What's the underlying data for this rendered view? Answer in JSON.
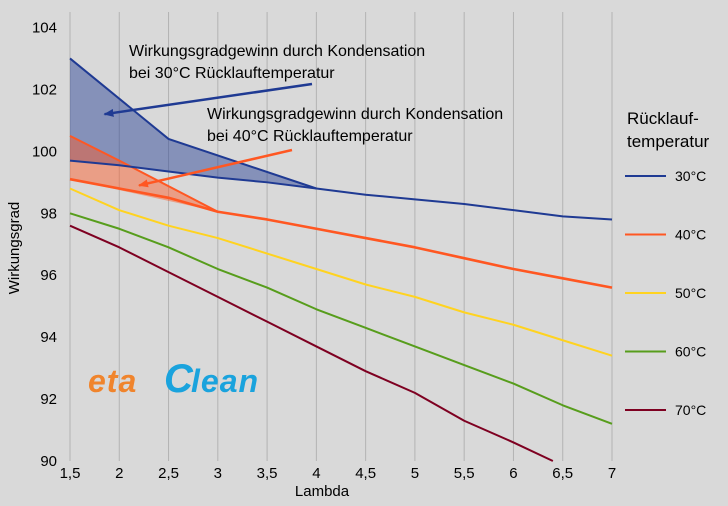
{
  "chart_data": {
    "type": "line",
    "xlabel": "Lambda",
    "ylabel": "Wirkungsgrad",
    "xlim": [
      1.5,
      7
    ],
    "ylim": [
      90,
      104.5
    ],
    "x_ticks": [
      "1,5",
      "2",
      "2,5",
      "3",
      "3,5",
      "4",
      "4,5",
      "5",
      "5,5",
      "6",
      "6,5",
      "7"
    ],
    "y_ticks": [
      "90",
      "92",
      "94",
      "96",
      "98",
      "100",
      "102",
      "104"
    ],
    "grid": "vertical",
    "legend": {
      "title": "Rücklauf-\ntemperatur",
      "placement": "right"
    },
    "series": [
      {
        "name": "30°C",
        "color": "#1f3a93",
        "x": [
          1.5,
          2,
          2.5,
          3,
          3.5,
          4,
          4.5,
          5,
          5.5,
          6,
          6.5,
          7
        ],
        "y": [
          99.7,
          99.55,
          99.35,
          99.15,
          99.0,
          98.8,
          98.6,
          98.45,
          98.3,
          98.1,
          97.9,
          97.8
        ]
      },
      {
        "name": "40°C",
        "color": "#ff5722",
        "x": [
          1.5,
          2,
          2.5,
          3,
          3.5,
          4,
          4.5,
          5,
          5.5,
          6,
          6.5,
          7
        ],
        "y": [
          99.1,
          98.8,
          98.5,
          98.05,
          97.8,
          97.5,
          97.2,
          96.9,
          96.55,
          96.2,
          95.9,
          95.6
        ]
      },
      {
        "name": "50°C",
        "color": "#ffd320",
        "x": [
          1.5,
          2,
          2.5,
          3,
          3.5,
          4,
          4.5,
          5,
          5.5,
          6,
          6.5,
          7
        ],
        "y": [
          98.8,
          98.1,
          97.6,
          97.2,
          96.7,
          96.2,
          95.7,
          95.3,
          94.8,
          94.4,
          93.9,
          93.4
        ]
      },
      {
        "name": "60°C",
        "color": "#579d1c",
        "x": [
          1.5,
          2,
          2.5,
          3,
          3.5,
          4,
          4.5,
          5,
          5.5,
          6,
          6.5,
          7
        ],
        "y": [
          98.0,
          97.5,
          96.9,
          96.2,
          95.6,
          94.9,
          94.3,
          93.7,
          93.1,
          92.5,
          91.8,
          91.2
        ]
      },
      {
        "name": "70°C",
        "color": "#7e0021",
        "x": [
          1.5,
          2,
          2.5,
          3,
          3.5,
          4,
          4.5,
          5,
          5.5,
          6,
          6.4
        ],
        "y": [
          97.6,
          96.9,
          96.1,
          95.3,
          94.5,
          93.7,
          92.9,
          92.2,
          91.3,
          90.6,
          90.0
        ]
      }
    ],
    "areas": [
      {
        "color": "#1f3a93",
        "upper": {
          "x": [
            1.5,
            2.5,
            4
          ],
          "y": [
            103.0,
            100.4,
            98.8
          ]
        },
        "lower": {
          "x": [
            1.5,
            2.5,
            4
          ],
          "y": [
            99.7,
            99.35,
            98.8
          ]
        }
      },
      {
        "color": "#ff5722",
        "upper": {
          "x": [
            1.5,
            2,
            3
          ],
          "y": [
            100.5,
            99.7,
            98.05
          ]
        },
        "lower": {
          "x": [
            1.5,
            3
          ],
          "y": [
            99.1,
            98.05
          ]
        }
      }
    ],
    "annotations": [
      {
        "lines": [
          "Wirkungsgradgewinn durch Kondensation",
          "bei 30°C Rücklauftemperatur"
        ],
        "color": "#1f3a93",
        "arrow_to": {
          "x": 1.85,
          "y": 101.2
        }
      },
      {
        "lines": [
          "Wirkungsgradgewinn durch Kondensation",
          "bei 40°C Rücklauftemperatur"
        ],
        "color": "#ff5722",
        "arrow_to": {
          "x": 2.2,
          "y": 98.9
        }
      }
    ],
    "watermark": "etaClean"
  }
}
